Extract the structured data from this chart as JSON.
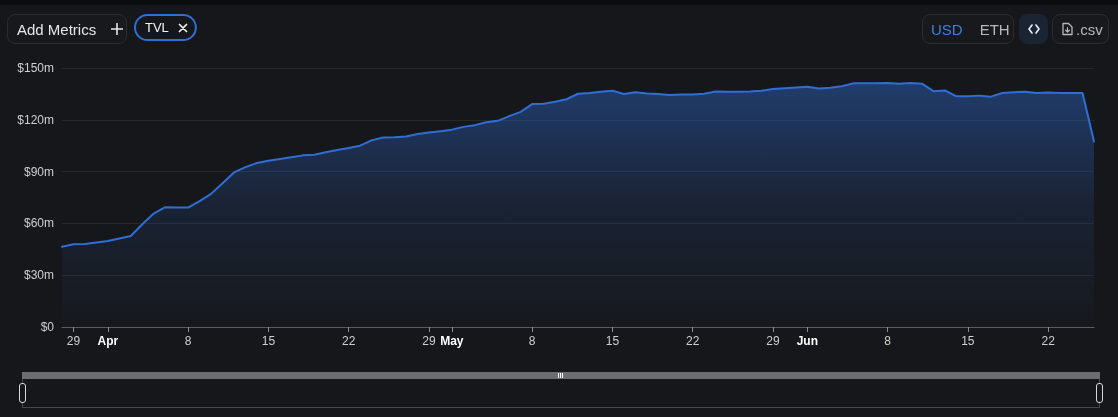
{
  "chart_data": {
    "type": "area",
    "x": [
      "--03-28",
      "--03-29",
      "--03-30",
      "--03-31",
      "--04-01",
      "--04-02",
      "--04-03",
      "--04-04",
      "--04-05",
      "--04-06",
      "--04-07",
      "--04-08",
      "--04-09",
      "--04-10",
      "--04-11",
      "--04-12",
      "--04-13",
      "--04-14",
      "--04-15",
      "--04-16",
      "--04-17",
      "--04-18",
      "--04-19",
      "--04-20",
      "--04-21",
      "--04-22",
      "--04-23",
      "--04-24",
      "--04-25",
      "--04-26",
      "--04-27",
      "--04-28",
      "--04-29",
      "--04-30",
      "--05-01",
      "--05-02",
      "--05-03",
      "--05-04",
      "--05-05",
      "--05-06",
      "--05-07",
      "--05-08",
      "--05-09",
      "--05-10",
      "--05-11",
      "--05-12",
      "--05-13",
      "--05-14",
      "--05-15",
      "--05-16",
      "--05-17",
      "--05-18",
      "--05-19",
      "--05-20",
      "--05-21",
      "--05-22",
      "--05-23",
      "--05-24",
      "--05-25",
      "--05-26",
      "--05-27",
      "--05-28",
      "--05-29",
      "--05-30",
      "--05-31",
      "--06-01",
      "--06-02",
      "--06-03",
      "--06-04",
      "--06-05",
      "--06-06",
      "--06-07",
      "--06-08",
      "--06-09",
      "--06-10",
      "--06-11",
      "--06-12",
      "--06-13",
      "--06-14",
      "--06-15",
      "--06-16",
      "--06-17",
      "--06-18",
      "--06-19",
      "--06-20",
      "--06-21",
      "--06-22",
      "--06-23",
      "--06-24",
      "--06-25",
      "--06-26"
    ],
    "series": [
      {
        "name": "TVL",
        "color": "#2f6ed6",
        "values": [
          46.5,
          47.9,
          48.1,
          49.0,
          49.8,
          51.2,
          52.7,
          59.5,
          65.7,
          69.4,
          69.2,
          69.2,
          72.9,
          77.1,
          83.3,
          89.5,
          92.6,
          95.0,
          96.3,
          97.3,
          98.3,
          99.4,
          99.8,
          101.2,
          102.5,
          103.7,
          105.0,
          108.1,
          109.7,
          109.9,
          110.3,
          111.8,
          112.6,
          113.4,
          114.3,
          115.9,
          116.9,
          118.6,
          119.4,
          122.1,
          124.6,
          129.1,
          129.3,
          130.5,
          131.9,
          135.1,
          135.5,
          136.2,
          136.8,
          134.9,
          136.0,
          135.3,
          134.9,
          134.3,
          134.7,
          134.7,
          135.1,
          136.4,
          136.2,
          136.2,
          136.4,
          136.8,
          137.9,
          138.3,
          138.7,
          139.2,
          138.1,
          138.5,
          139.4,
          141.1,
          141.1,
          141.1,
          141.3,
          140.9,
          141.3,
          140.9,
          136.6,
          137.0,
          133.6,
          133.6,
          134.0,
          133.4,
          135.5,
          136.0,
          136.2,
          135.5,
          135.8,
          135.5,
          135.5,
          135.5,
          107.4
        ]
      }
    ],
    "xlim": [
      "--03-28",
      "--06-26"
    ],
    "xticks": [
      {
        "value": "--03-29",
        "label": "29"
      },
      {
        "value": "--04-01",
        "label": "Apr"
      },
      {
        "value": "--04-08",
        "label": "8"
      },
      {
        "value": "--04-15",
        "label": "15"
      },
      {
        "value": "--04-22",
        "label": "22"
      },
      {
        "value": "--04-29",
        "label": "29"
      },
      {
        "value": "--05-01",
        "label": "May"
      },
      {
        "value": "--05-08",
        "label": "8"
      },
      {
        "value": "--05-15",
        "label": "15"
      },
      {
        "value": "--05-22",
        "label": "22"
      },
      {
        "value": "--05-29",
        "label": "29"
      },
      {
        "value": "--06-01",
        "label": "Jun"
      },
      {
        "value": "--06-08",
        "label": "8"
      },
      {
        "value": "--06-15",
        "label": "15"
      },
      {
        "value": "--06-22",
        "label": "22"
      }
    ],
    "ylim": [
      0,
      150
    ],
    "yticks": [
      {
        "value": 0,
        "label": "$0"
      },
      {
        "value": 30,
        "label": "$30m"
      },
      {
        "value": 60,
        "label": "$60m"
      },
      {
        "value": 90,
        "label": "$90m"
      },
      {
        "value": 120,
        "label": "$120m"
      },
      {
        "value": 150,
        "label": "$150m"
      }
    ],
    "grid": "y",
    "legend": "top left",
    "marker": "none",
    "annotations": [
      "Add Metrics",
      "USD",
      "ETH",
      ".csv"
    ]
  }
}
